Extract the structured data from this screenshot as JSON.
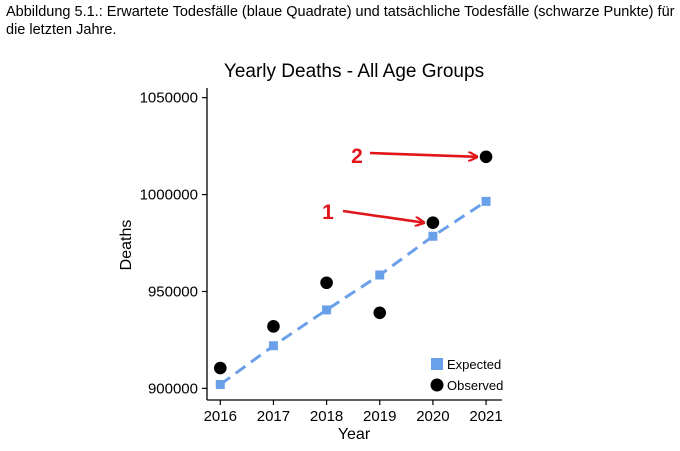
{
  "caption": "Abbildung 5.1.: Erwartete Todesfälle (blaue Quadrate) und tatsächliche Todesfälle (schwarze Punkte) für die letzten Jahre.",
  "chart_data": {
    "type": "line",
    "title": "Yearly Deaths - All Age Groups",
    "xlabel": "Year",
    "ylabel": "Deaths",
    "x": [
      2016,
      2017,
      2018,
      2019,
      2020,
      2021
    ],
    "x_tick_labels": [
      "2016",
      "2017",
      "2018",
      "2019",
      "2020",
      "2021"
    ],
    "y_ticks": [
      900000,
      950000,
      1000000,
      1050000
    ],
    "y_tick_labels": [
      "900000",
      "950000",
      "1000000",
      "1050000"
    ],
    "xlim": [
      2015.75,
      2021.3
    ],
    "ylim": [
      894000,
      1055000
    ],
    "grid": false,
    "legend_position": "bottom-right",
    "series": [
      {
        "name": "Expected",
        "marker": "square",
        "line": "dashed",
        "color": "#6aa0ea",
        "values": [
          902000,
          922000,
          940500,
          958500,
          978500,
          996500
        ]
      },
      {
        "name": "Observed",
        "marker": "circle",
        "line": "none",
        "color": "#000000",
        "values": [
          910500,
          932000,
          954500,
          939000,
          985500,
          1019500
        ]
      }
    ],
    "annotations": [
      {
        "label": "1",
        "color": "#e0161b",
        "target_x": 2020,
        "target_y": 985500
      },
      {
        "label": "2",
        "color": "#e0161b",
        "target_x": 2021,
        "target_y": 1019500
      }
    ]
  }
}
